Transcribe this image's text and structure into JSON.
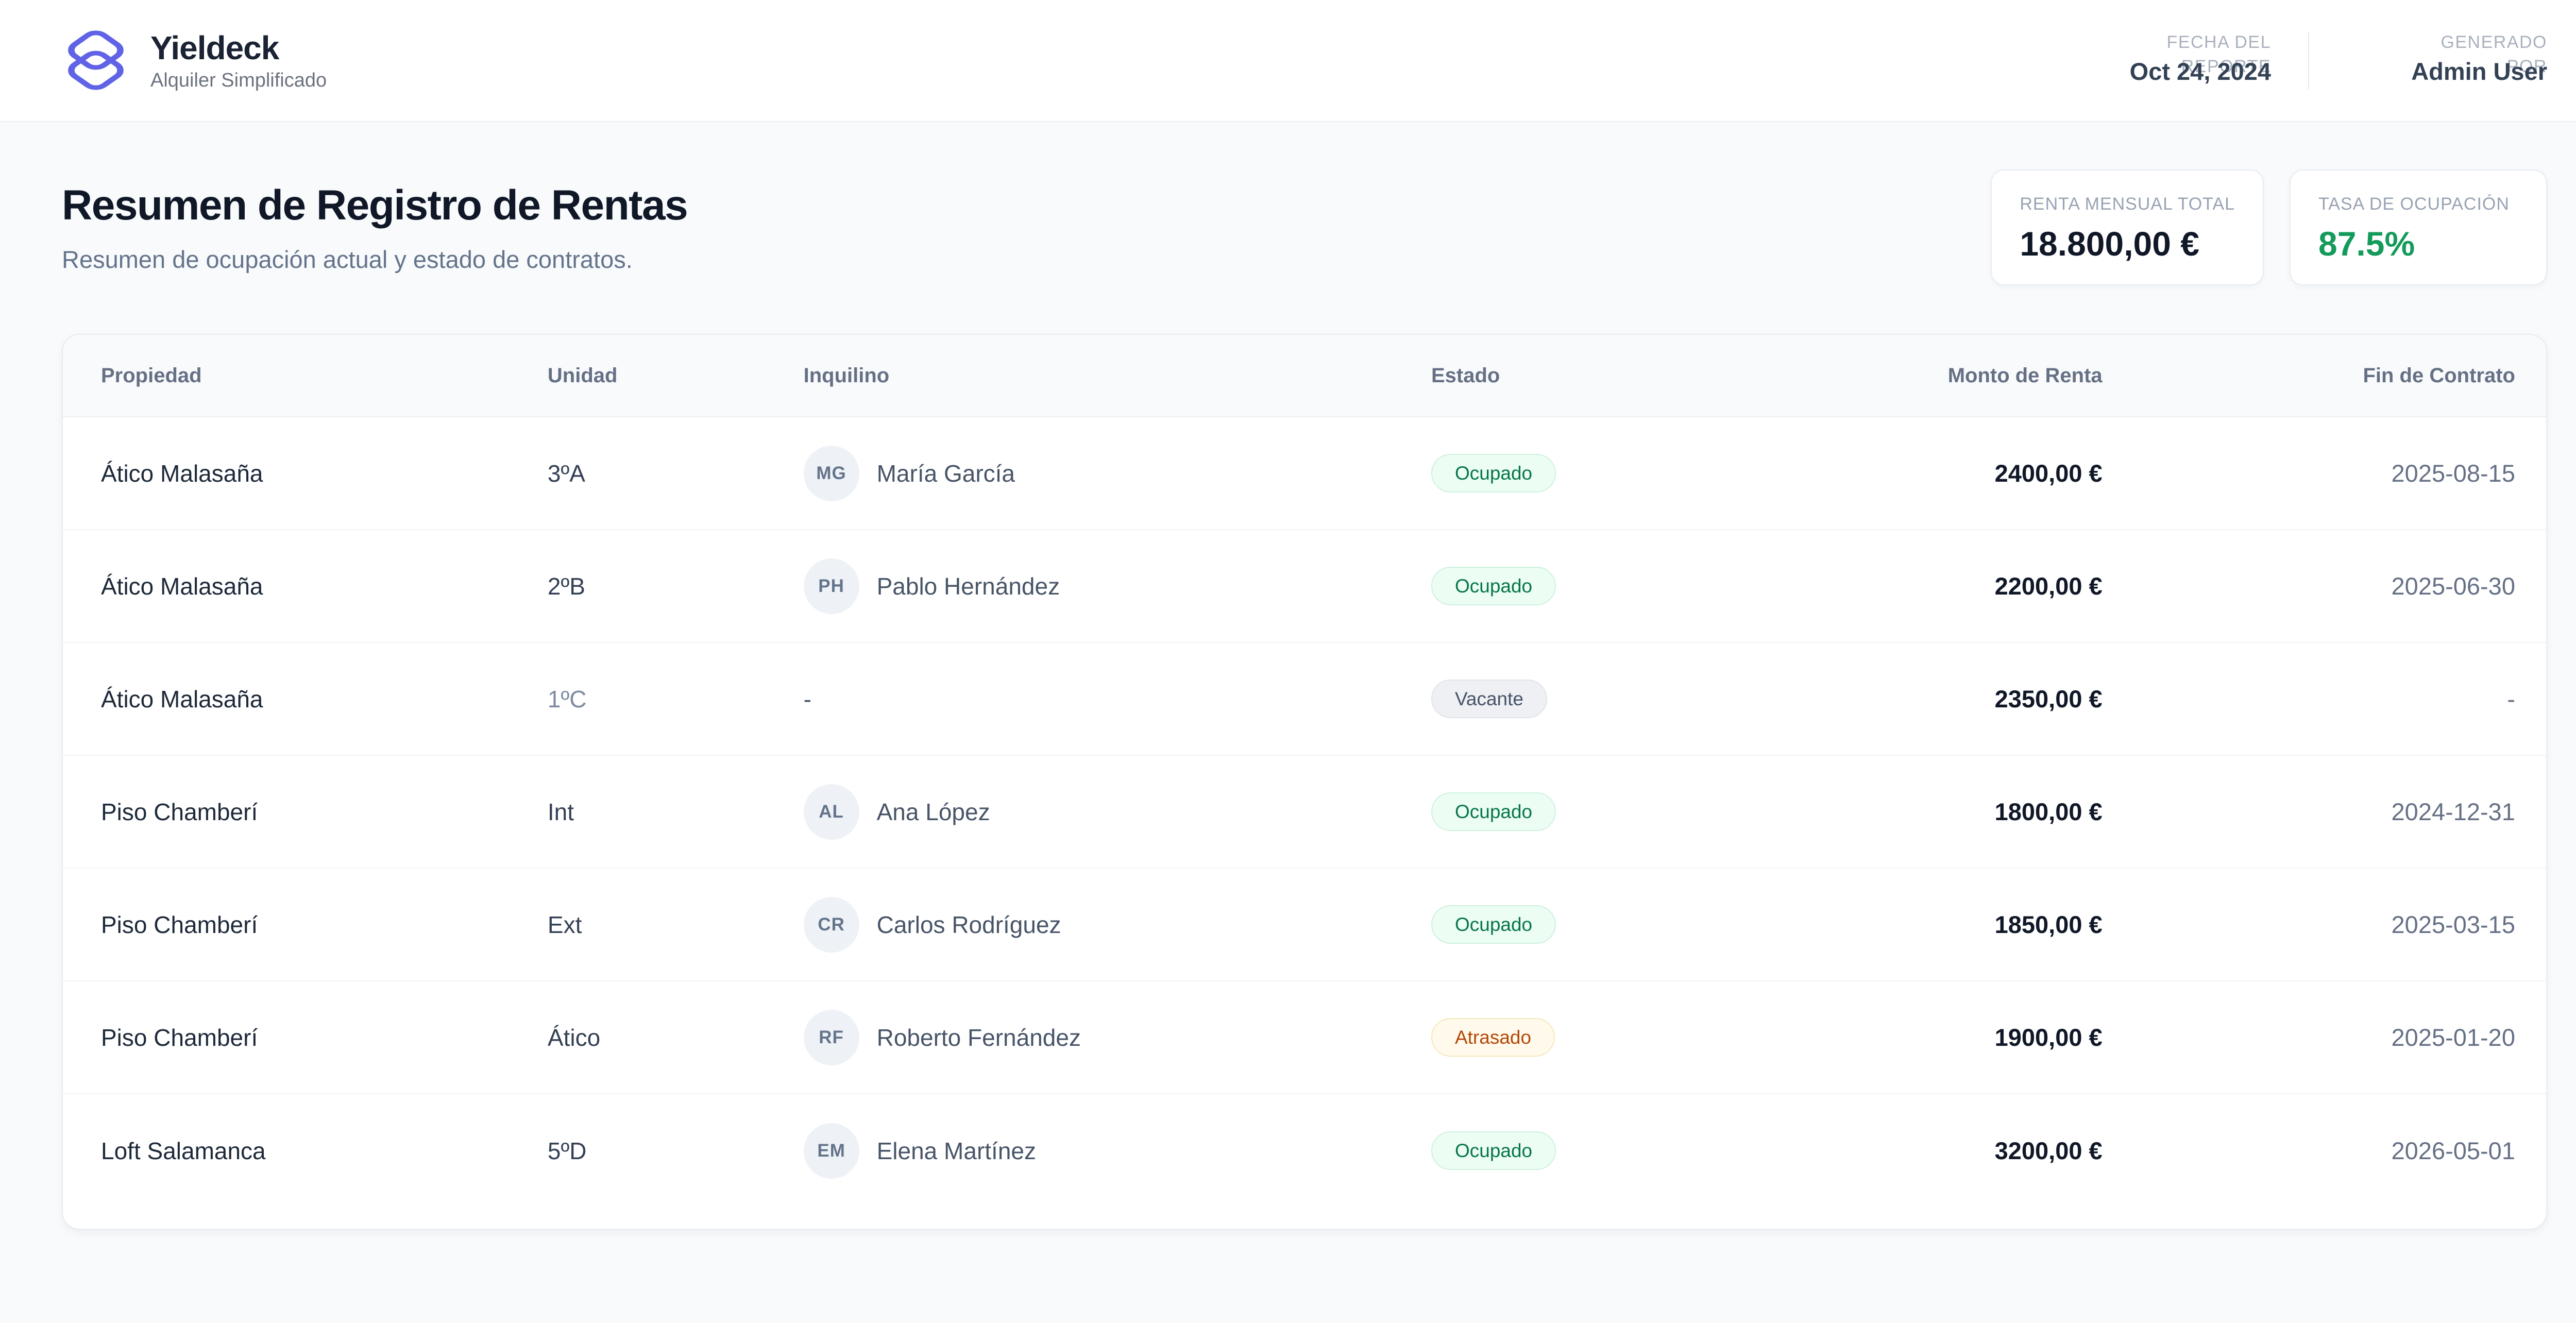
{
  "brand": {
    "name": "Yieldeck",
    "tagline": "Alquiler Simplificado"
  },
  "header_meta": [
    {
      "label_line1": "FECHA DEL",
      "label_line2": "REPORTE",
      "value": "Oct 24, 2024"
    },
    {
      "label_line1": "GENERADO",
      "label_line2": "POR",
      "value": "Admin User"
    }
  ],
  "page": {
    "title": "Resumen de Registro de Rentas",
    "subtitle": "Resumen de ocupación actual y estado de contratos."
  },
  "stats": [
    {
      "label": "RENTA MENSUAL TOTAL",
      "value": "18.800,00 €"
    },
    {
      "label": "TASA DE OCUPACIÓN",
      "value": "87.5%"
    }
  ],
  "table": {
    "columns": [
      "Propiedad",
      "Unidad",
      "Inquilino",
      "Estado",
      "Monto de Renta",
      "Fin de Contrato"
    ],
    "rows": [
      {
        "property": "Ático Malasaña",
        "unit": "3ºA",
        "unit_muted": false,
        "initials": "MG",
        "tenant": "María García",
        "status": "Ocupado",
        "status_type": "occupied",
        "rent": "2400,00 €",
        "contract_end": "2025-08-15"
      },
      {
        "property": "Ático Malasaña",
        "unit": "2ºB",
        "unit_muted": false,
        "initials": "PH",
        "tenant": "Pablo Hernández",
        "status": "Ocupado",
        "status_type": "occupied",
        "rent": "2200,00 €",
        "contract_end": "2025-06-30"
      },
      {
        "property": "Ático Malasaña",
        "unit": "1ºC",
        "unit_muted": true,
        "initials": "",
        "tenant": "-",
        "status": "Vacante",
        "status_type": "vacant",
        "rent": "2350,00 €",
        "contract_end": "-"
      },
      {
        "property": "Piso Chamberí",
        "unit": "Int",
        "unit_muted": false,
        "initials": "AL",
        "tenant": "Ana López",
        "status": "Ocupado",
        "status_type": "occupied",
        "rent": "1800,00 €",
        "contract_end": "2024-12-31"
      },
      {
        "property": "Piso Chamberí",
        "unit": "Ext",
        "unit_muted": false,
        "initials": "CR",
        "tenant": "Carlos Rodríguez",
        "status": "Ocupado",
        "status_type": "occupied",
        "rent": "1850,00 €",
        "contract_end": "2025-03-15"
      },
      {
        "property": "Piso Chamberí",
        "unit": "Ático",
        "unit_muted": false,
        "initials": "RF",
        "tenant": "Roberto Fernández",
        "status": "Atrasado",
        "status_type": "late",
        "rent": "1900,00 €",
        "contract_end": "2025-01-20"
      },
      {
        "property": "Loft Salamanca",
        "unit": "5ºD",
        "unit_muted": false,
        "initials": "EM",
        "tenant": "Elena Martínez",
        "status": "Ocupado",
        "status_type": "occupied",
        "rent": "3200,00 €",
        "contract_end": "2026-05-01"
      }
    ]
  },
  "colors": {
    "brand_accent": "#6063e6",
    "occupancy_green": "#149a5b",
    "occupied_text": "#067647",
    "occupied_bg": "#ecfdf3",
    "vacant_text": "#475467",
    "vacant_bg": "#eef0f4",
    "late_text": "#b54708",
    "late_bg": "#fffaeb"
  }
}
